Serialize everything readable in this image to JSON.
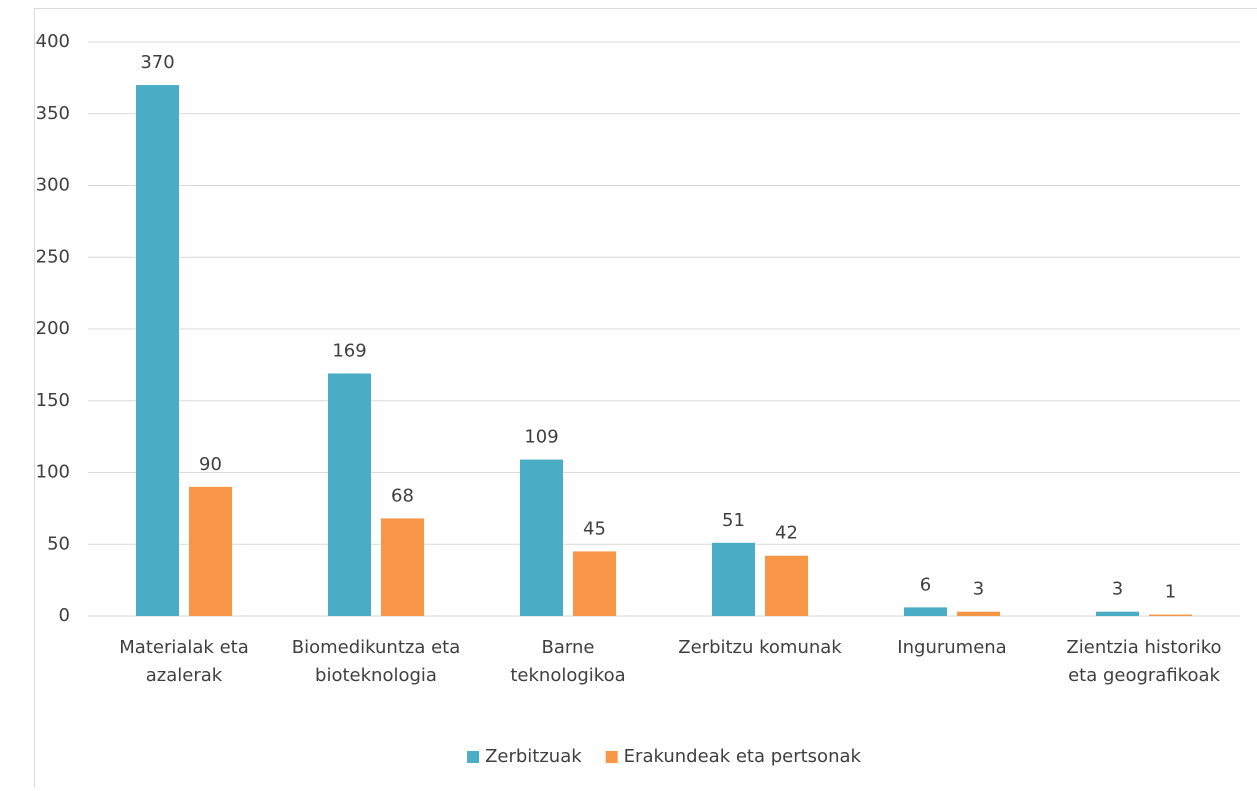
{
  "chart_data": {
    "type": "bar",
    "categories": [
      "Materialak eta azalerak",
      "Biomedikuntza eta bioteknologia",
      "Barne teknologikoa",
      "Zerbitzu komunak",
      "Ingurumena",
      "Zientzia historiko eta geografikoak"
    ],
    "series": [
      {
        "name": "Zerbitzuak",
        "color": "#4bacc6",
        "values": [
          370,
          169,
          109,
          51,
          6,
          3
        ]
      },
      {
        "name": "Erakundeak eta pertsonak",
        "color": "#f79646",
        "values": [
          90,
          68,
          45,
          42,
          3,
          1
        ]
      }
    ],
    "ylim": [
      0,
      400
    ],
    "yticks": [
      0,
      50,
      100,
      150,
      200,
      250,
      300,
      350,
      400
    ],
    "grid": true,
    "legend": "bottom"
  }
}
